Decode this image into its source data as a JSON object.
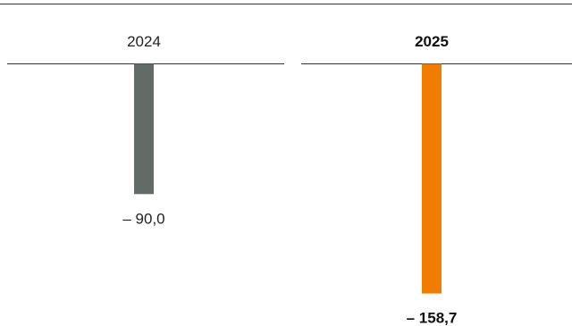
{
  "chart_data": {
    "type": "bar",
    "categories": [
      "2024",
      "2025"
    ],
    "values": [
      -90.0,
      -158.7
    ],
    "value_labels": [
      "– 90,0",
      "– 158,7"
    ],
    "highlight": [
      false,
      true
    ],
    "colors": [
      "#626b66",
      "#f07c00"
    ],
    "title": "",
    "xlabel": "",
    "ylabel": "",
    "ylim": [
      -165,
      0
    ],
    "grid": false,
    "legend": "none"
  }
}
